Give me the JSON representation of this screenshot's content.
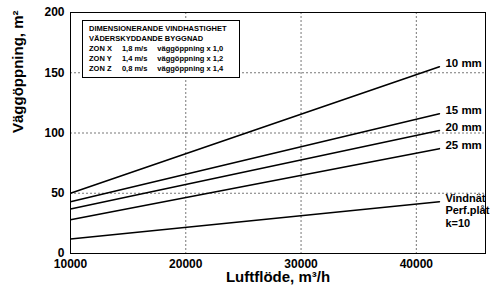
{
  "chart_data": {
    "type": "line",
    "x_label": "Luftflöde, m³/h",
    "y_label": "Väggöppning, m²",
    "xlim": [
      10000,
      46000
    ],
    "xticks": [
      10000,
      20000,
      30000,
      40000
    ],
    "ylim": [
      0,
      200
    ],
    "yticks": [
      0,
      50,
      100,
      150,
      200
    ],
    "grid": true,
    "x": [
      10000,
      42000
    ],
    "series": [
      {
        "name": "10 mm",
        "color": "#000000",
        "values": [
          50,
          155
        ]
      },
      {
        "name": "15 mm",
        "color": "#000000",
        "values": [
          43,
          116
        ]
      },
      {
        "name": "20 mm",
        "color": "#000000",
        "values": [
          37,
          102
        ]
      },
      {
        "name": "25 mm",
        "color": "#000000",
        "values": [
          28,
          87
        ]
      },
      {
        "name": "Vindnät\nPerf.plåt\nk=10",
        "color": "#000000",
        "values": [
          12,
          43
        ]
      }
    ],
    "annotation": {
      "title_lines": [
        "DIMENSIONERANDE VINDHASTIGHET",
        "VÄDERSKYDDANDE BYGGNAD"
      ],
      "rows": [
        [
          "ZON X",
          "1,8 m/s",
          "väggöppning x 1,0"
        ],
        [
          "ZON Y",
          "1,4 m/s",
          "väggöppning x 1,2"
        ],
        [
          "ZON Z",
          "0,8 m/s",
          "väggöppning x 1,4"
        ]
      ]
    }
  }
}
